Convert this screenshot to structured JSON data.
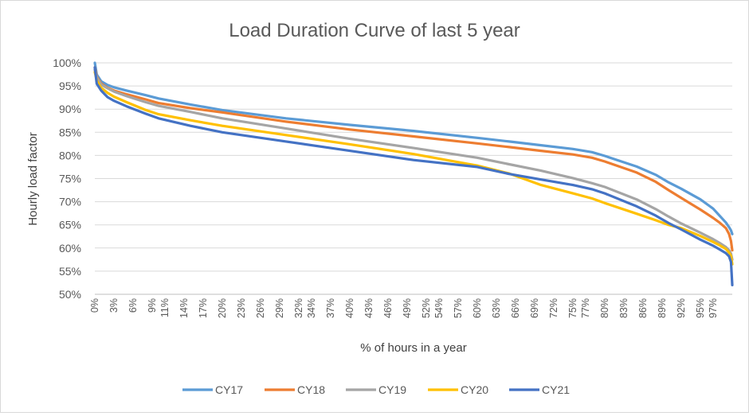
{
  "chart_data": {
    "type": "line",
    "title": "Load Duration Curve of last 5 year",
    "xlabel": "% of hours in a year",
    "ylabel": "Hourly load factor",
    "ylim": [
      50,
      100
    ],
    "xlim": [
      0,
      100
    ],
    "grid": {
      "horizontal": true,
      "vertical": false
    },
    "legend_position": "bottom",
    "y_ticks": [
      "50%",
      "55%",
      "60%",
      "65%",
      "70%",
      "75%",
      "80%",
      "85%",
      "90%",
      "95%",
      "100%"
    ],
    "y_tick_values": [
      50,
      55,
      60,
      65,
      70,
      75,
      80,
      85,
      90,
      95,
      100
    ],
    "x_ticks": [
      "0%",
      "3%",
      "6%",
      "9%",
      "11%",
      "14%",
      "17%",
      "20%",
      "23%",
      "26%",
      "29%",
      "32%",
      "34%",
      "37%",
      "40%",
      "43%",
      "46%",
      "49%",
      "52%",
      "54%",
      "57%",
      "60%",
      "63%",
      "66%",
      "69%",
      "72%",
      "75%",
      "77%",
      "80%",
      "83%",
      "86%",
      "89%",
      "92%",
      "95%",
      "97%"
    ],
    "x_tick_values": [
      0,
      3,
      6,
      9,
      11,
      14,
      17,
      20,
      23,
      26,
      29,
      32,
      34,
      37,
      40,
      43,
      46,
      49,
      52,
      54,
      57,
      60,
      63,
      66,
      69,
      72,
      75,
      77,
      80,
      83,
      86,
      89,
      92,
      95,
      97
    ],
    "x": [
      0,
      0.3,
      1,
      2,
      3,
      5,
      8,
      10,
      15,
      20,
      30,
      40,
      50,
      60,
      65,
      70,
      75,
      78,
      80,
      85,
      88,
      90,
      92,
      95,
      97,
      98,
      99,
      99.5,
      99.8,
      100
    ],
    "series": [
      {
        "name": "CY17",
        "color": "#5b9bd5",
        "values": [
          100,
          97.5,
          96.0,
          95.2,
          94.7,
          94.0,
          93.0,
          92.3,
          91.0,
          89.8,
          88.0,
          86.6,
          85.3,
          83.8,
          83.0,
          82.2,
          81.4,
          80.7,
          79.9,
          77.6,
          75.8,
          74.2,
          72.8,
          70.5,
          68.5,
          67.0,
          65.5,
          64.5,
          63.8,
          63.0
        ]
      },
      {
        "name": "CY18",
        "color": "#ed7d31",
        "values": [
          99.0,
          97.0,
          95.5,
          94.6,
          94.0,
          93.2,
          92.1,
          91.3,
          90.2,
          89.3,
          87.3,
          85.6,
          84.1,
          82.6,
          81.8,
          81.0,
          80.2,
          79.5,
          78.7,
          76.3,
          74.3,
          72.5,
          70.8,
          68.3,
          66.5,
          65.5,
          64.3,
          63.0,
          61.5,
          59.5
        ]
      },
      {
        "name": "CY19",
        "color": "#a5a5a5",
        "values": [
          98.5,
          96.8,
          95.3,
          94.5,
          93.8,
          92.8,
          91.5,
          90.7,
          89.4,
          88.0,
          85.8,
          83.6,
          81.6,
          79.5,
          78.1,
          76.7,
          75.1,
          74.0,
          73.2,
          70.5,
          68.4,
          66.8,
          65.3,
          63.3,
          61.9,
          61.1,
          60.2,
          59.5,
          58.8,
          57.5
        ]
      },
      {
        "name": "CY20",
        "color": "#ffc000",
        "values": [
          98.0,
          96.2,
          94.6,
          93.5,
          92.7,
          91.5,
          89.8,
          88.9,
          87.6,
          86.4,
          84.4,
          82.4,
          80.3,
          77.8,
          76.1,
          73.6,
          71.8,
          70.7,
          69.7,
          67.4,
          66.0,
          65.0,
          64.3,
          62.6,
          61.3,
          60.6,
          59.8,
          59.0,
          58.3,
          56.5
        ]
      },
      {
        "name": "CY21",
        "color": "#4472c4",
        "values": [
          99.0,
          95.5,
          94.0,
          92.6,
          91.8,
          90.6,
          89.0,
          88.0,
          86.4,
          85.0,
          83.0,
          81.0,
          79.0,
          77.5,
          76.0,
          74.8,
          73.6,
          72.7,
          71.8,
          69.0,
          67.0,
          65.4,
          64.0,
          61.8,
          60.5,
          59.7,
          58.9,
          58.2,
          57.0,
          52.0
        ]
      }
    ]
  }
}
